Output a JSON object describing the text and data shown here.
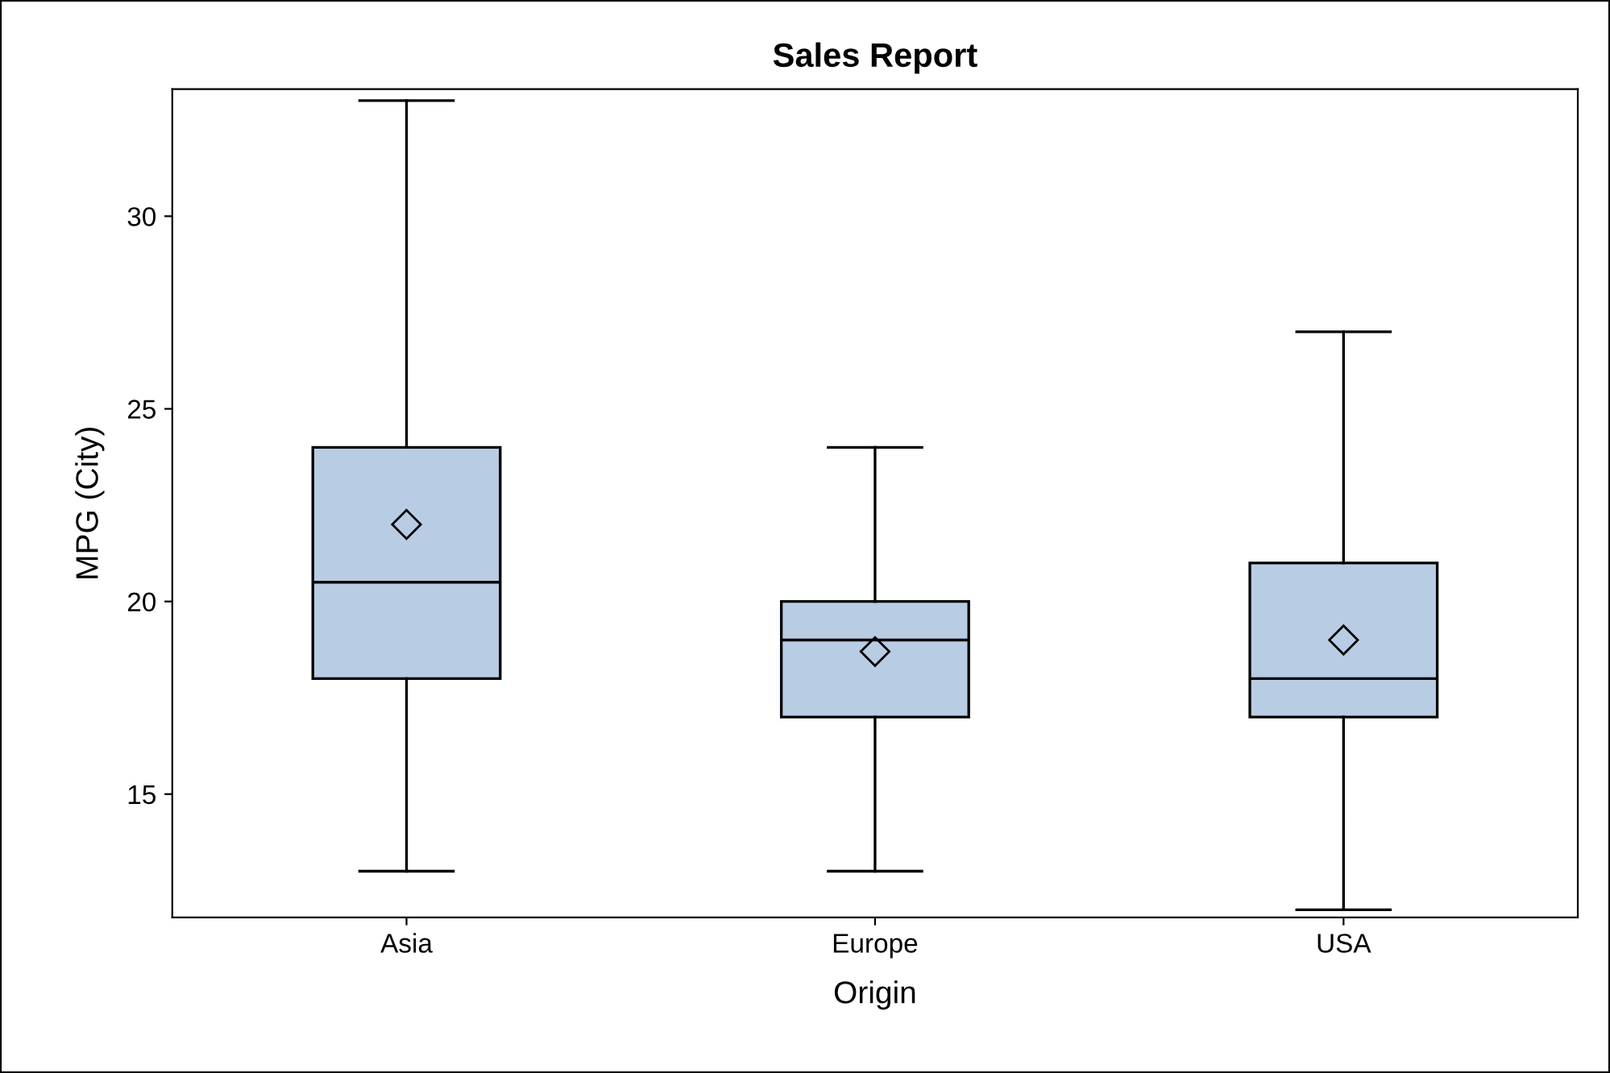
{
  "chart_data": {
    "type": "box",
    "title": "Sales Report",
    "xlabel": "Origin",
    "ylabel": "MPG (City)",
    "categories": [
      "Asia",
      "Europe",
      "USA"
    ],
    "boxes": [
      {
        "low": 13,
        "q1": 18,
        "median": 20.5,
        "q3": 24,
        "high": 33,
        "mean": 22.0
      },
      {
        "low": 13,
        "q1": 17,
        "median": 19,
        "q3": 20,
        "high": 24,
        "mean": 18.7
      },
      {
        "low": 12,
        "q1": 17,
        "median": 18,
        "q3": 21,
        "high": 27,
        "mean": 19.0
      }
    ],
    "color": "#b8cce4",
    "marker": "diamond",
    "ylim": [
      11.8,
      33.3
    ],
    "yticks": [
      15,
      20,
      25,
      30
    ]
  }
}
